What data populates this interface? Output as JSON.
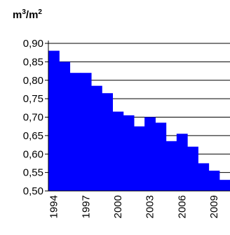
{
  "chart_data": {
    "type": "area",
    "title": "",
    "unit_label": {
      "base1": "m",
      "exp1": "3",
      "sep": "/m",
      "exp2": "2"
    },
    "xlabel": "",
    "ylabel": "",
    "x": [
      1994,
      1995,
      1996,
      1997,
      1998,
      1999,
      2000,
      2001,
      2002,
      2003,
      2004,
      2005,
      2006,
      2007,
      2008,
      2009,
      2010
    ],
    "values": [
      0.88,
      0.85,
      0.82,
      0.82,
      0.785,
      0.765,
      0.715,
      0.705,
      0.675,
      0.7,
      0.685,
      0.635,
      0.655,
      0.62,
      0.575,
      0.555,
      0.53
    ],
    "xtick_labels": [
      "1994",
      "1997",
      "2000",
      "2003",
      "2006",
      "2009"
    ],
    "ylim": [
      0.5,
      0.9
    ],
    "yticks": [
      "0,90",
      "0,85",
      "0,80",
      "0,75",
      "0,70",
      "0,65",
      "0,60",
      "0,55",
      "0,50"
    ],
    "fill_color": "#0000ff",
    "grid": true,
    "grid_axis": "y",
    "legend": "none"
  }
}
